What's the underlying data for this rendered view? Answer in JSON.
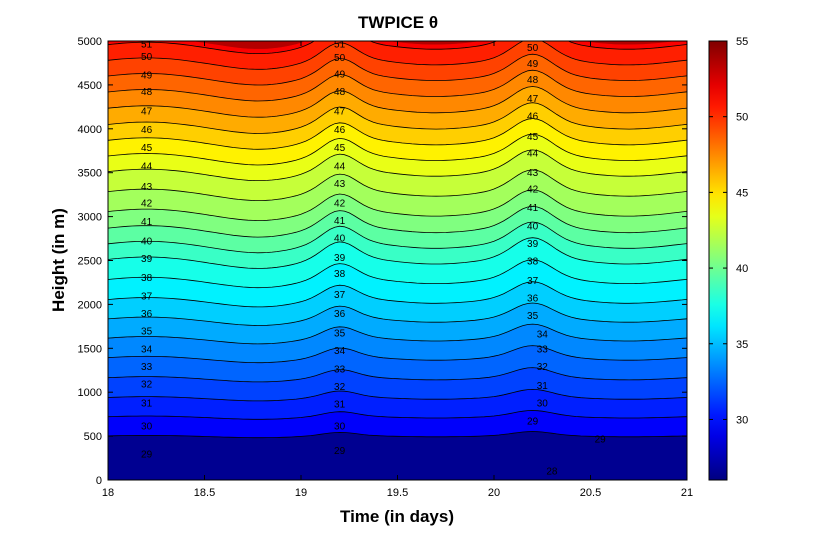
{
  "chart_data": {
    "type": "heatmap",
    "subtype": "filled-contour",
    "title": "TWPICE θ",
    "xlabel": "Time (in days)",
    "ylabel": "Height (in m)",
    "xlim": [
      18,
      21
    ],
    "ylim": [
      0,
      5000
    ],
    "xticks": [
      "18",
      "18.5",
      "19",
      "19.5",
      "20",
      "20.5",
      "21"
    ],
    "yticks": [
      "0",
      "500",
      "1000",
      "1500",
      "2000",
      "2500",
      "3000",
      "3500",
      "4000",
      "4500",
      "5000"
    ],
    "colorbar": {
      "range": [
        26,
        55
      ],
      "ticks": [
        "30",
        "35",
        "40",
        "45",
        "50",
        "55"
      ],
      "colormap": "jet"
    },
    "contour_levels": [
      29,
      30,
      31,
      32,
      33,
      34,
      35,
      36,
      37,
      38,
      39,
      40,
      41,
      42,
      43,
      44,
      45,
      46,
      47,
      48,
      49,
      50,
      51
    ],
    "profile": [
      {
        "h": 0,
        "theta": 26.5
      },
      {
        "h": 500,
        "theta": 29.0
      },
      {
        "h": 1000,
        "theta": 31.3
      },
      {
        "h": 1500,
        "theta": 33.5
      },
      {
        "h": 2000,
        "theta": 35.8
      },
      {
        "h": 2500,
        "theta": 38.0
      },
      {
        "h": 3000,
        "theta": 40.8
      },
      {
        "h": 3500,
        "theta": 43.0
      },
      {
        "h": 4000,
        "theta": 45.8
      },
      {
        "h": 4500,
        "theta": 48.5
      },
      {
        "h": 5000,
        "theta": 51.3
      }
    ],
    "contour_labels": [
      {
        "text": "51",
        "x": 18.2,
        "y": 4970
      },
      {
        "text": "50",
        "x": 18.2,
        "y": 4830
      },
      {
        "text": "49",
        "x": 18.2,
        "y": 4620
      },
      {
        "text": "48",
        "x": 18.2,
        "y": 4430
      },
      {
        "text": "47",
        "x": 18.2,
        "y": 4210
      },
      {
        "text": "46",
        "x": 18.2,
        "y": 4000
      },
      {
        "text": "45",
        "x": 18.2,
        "y": 3790
      },
      {
        "text": "44",
        "x": 18.2,
        "y": 3580
      },
      {
        "text": "43",
        "x": 18.2,
        "y": 3350
      },
      {
        "text": "42",
        "x": 18.2,
        "y": 3160
      },
      {
        "text": "41",
        "x": 18.2,
        "y": 2950
      },
      {
        "text": "40",
        "x": 18.2,
        "y": 2730
      },
      {
        "text": "39",
        "x": 18.2,
        "y": 2530
      },
      {
        "text": "38",
        "x": 18.2,
        "y": 2310
      },
      {
        "text": "37",
        "x": 18.2,
        "y": 2100
      },
      {
        "text": "36",
        "x": 18.2,
        "y": 1900
      },
      {
        "text": "35",
        "x": 18.2,
        "y": 1700
      },
      {
        "text": "34",
        "x": 18.2,
        "y": 1500
      },
      {
        "text": "33",
        "x": 18.2,
        "y": 1300
      },
      {
        "text": "32",
        "x": 18.2,
        "y": 1100
      },
      {
        "text": "31",
        "x": 18.2,
        "y": 880
      },
      {
        "text": "30",
        "x": 18.2,
        "y": 620
      },
      {
        "text": "29",
        "x": 18.2,
        "y": 300
      },
      {
        "text": "51",
        "x": 19.2,
        "y": 4970
      },
      {
        "text": "50",
        "x": 19.2,
        "y": 4820
      },
      {
        "text": "49",
        "x": 19.2,
        "y": 4630
      },
      {
        "text": "48",
        "x": 19.2,
        "y": 4430
      },
      {
        "text": "47",
        "x": 19.2,
        "y": 4210
      },
      {
        "text": "46",
        "x": 19.2,
        "y": 4000
      },
      {
        "text": "45",
        "x": 19.2,
        "y": 3790
      },
      {
        "text": "44",
        "x": 19.2,
        "y": 3580
      },
      {
        "text": "43",
        "x": 19.2,
        "y": 3380
      },
      {
        "text": "42",
        "x": 19.2,
        "y": 3160
      },
      {
        "text": "41",
        "x": 19.2,
        "y": 2960
      },
      {
        "text": "40",
        "x": 19.2,
        "y": 2760
      },
      {
        "text": "39",
        "x": 19.2,
        "y": 2540
      },
      {
        "text": "38",
        "x": 19.2,
        "y": 2360
      },
      {
        "text": "37",
        "x": 19.2,
        "y": 2120
      },
      {
        "text": "36",
        "x": 19.2,
        "y": 1900
      },
      {
        "text": "35",
        "x": 19.2,
        "y": 1680
      },
      {
        "text": "34",
        "x": 19.2,
        "y": 1480
      },
      {
        "text": "33",
        "x": 19.2,
        "y": 1270
      },
      {
        "text": "32",
        "x": 19.2,
        "y": 1070
      },
      {
        "text": "31",
        "x": 19.2,
        "y": 870
      },
      {
        "text": "30",
        "x": 19.2,
        "y": 620
      },
      {
        "text": "29",
        "x": 19.2,
        "y": 340
      },
      {
        "text": "50",
        "x": 20.2,
        "y": 4930
      },
      {
        "text": "49",
        "x": 20.2,
        "y": 4750
      },
      {
        "text": "48",
        "x": 20.2,
        "y": 4570
      },
      {
        "text": "47",
        "x": 20.2,
        "y": 4350
      },
      {
        "text": "46",
        "x": 20.2,
        "y": 4150
      },
      {
        "text": "45",
        "x": 20.2,
        "y": 3920
      },
      {
        "text": "44",
        "x": 20.2,
        "y": 3730
      },
      {
        "text": "43",
        "x": 20.2,
        "y": 3510
      },
      {
        "text": "42",
        "x": 20.2,
        "y": 3320
      },
      {
        "text": "41",
        "x": 20.2,
        "y": 3110
      },
      {
        "text": "40",
        "x": 20.2,
        "y": 2900
      },
      {
        "text": "39",
        "x": 20.2,
        "y": 2700
      },
      {
        "text": "38",
        "x": 20.2,
        "y": 2500
      },
      {
        "text": "37",
        "x": 20.2,
        "y": 2280
      },
      {
        "text": "36",
        "x": 20.2,
        "y": 2080
      },
      {
        "text": "35",
        "x": 20.2,
        "y": 1880
      },
      {
        "text": "34",
        "x": 20.25,
        "y": 1670
      },
      {
        "text": "33",
        "x": 20.25,
        "y": 1500
      },
      {
        "text": "32",
        "x": 20.25,
        "y": 1300
      },
      {
        "text": "31",
        "x": 20.25,
        "y": 1080
      },
      {
        "text": "30",
        "x": 20.25,
        "y": 880
      },
      {
        "text": "29",
        "x": 20.2,
        "y": 680
      },
      {
        "text": "29",
        "x": 20.55,
        "y": 470
      },
      {
        "text": "28",
        "x": 20.3,
        "y": 110
      }
    ]
  }
}
